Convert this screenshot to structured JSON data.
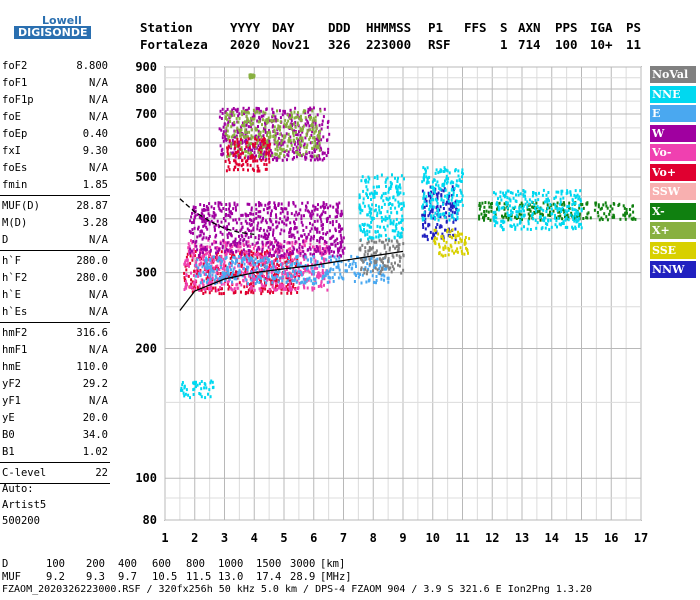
{
  "logo": {
    "line1": "Lowell",
    "line2": "DIGISONDE"
  },
  "header": {
    "row1": [
      "Station",
      "YYYY",
      "DAY",
      "DDD",
      "HHMMSS",
      "P1",
      "FFS",
      "S",
      "AXN",
      "PPS",
      "IGA",
      "PS"
    ],
    "row2": [
      "Fortaleza",
      "2020",
      "Nov21",
      "326",
      "223000",
      "RSF",
      "1",
      "714",
      "100",
      "10+",
      "11"
    ]
  },
  "params": {
    "group1": [
      {
        "k": "foF2",
        "v": "8.800"
      },
      {
        "k": "foF1",
        "v": "N/A"
      },
      {
        "k": "foF1p",
        "v": "N/A"
      },
      {
        "k": "foE",
        "v": "N/A"
      },
      {
        "k": "foEp",
        "v": "0.40"
      },
      {
        "k": "fxI",
        "v": "9.30"
      },
      {
        "k": "foEs",
        "v": "N/A"
      },
      {
        "k": "fmin",
        "v": "1.85"
      }
    ],
    "group2": [
      {
        "k": "MUF(D)",
        "v": "28.87"
      },
      {
        "k": "M(D)",
        "v": "3.28"
      },
      {
        "k": "D",
        "v": "N/A"
      }
    ],
    "group3": [
      {
        "k": "h`F",
        "v": "280.0"
      },
      {
        "k": "h`F2",
        "v": "280.0"
      },
      {
        "k": "h`E",
        "v": "N/A"
      },
      {
        "k": "h`Es",
        "v": "N/A"
      }
    ],
    "group4": [
      {
        "k": "hmF2",
        "v": "316.6"
      },
      {
        "k": "hmF1",
        "v": "N/A"
      },
      {
        "k": "hmE",
        "v": "110.0"
      },
      {
        "k": "yF2",
        "v": "29.2"
      },
      {
        "k": "yF1",
        "v": "N/A"
      },
      {
        "k": "yE",
        "v": "20.0"
      },
      {
        "k": "B0",
        "v": "34.0"
      },
      {
        "k": "B1",
        "v": "1.02"
      }
    ],
    "group5": [
      {
        "k": "C-level",
        "v": "22"
      }
    ]
  },
  "autoscale": {
    "line1": "Auto:",
    "line2": "Artist5",
    "line3": "500200"
  },
  "legend": [
    {
      "label": "NoVal",
      "color": "#808080"
    },
    {
      "label": "NNE",
      "color": "#00d8f0"
    },
    {
      "label": "E",
      "color": "#4aa8f0"
    },
    {
      "label": "W",
      "color": "#a000a0"
    },
    {
      "label": "Vo-",
      "color": "#f040b0"
    },
    {
      "label": "Vo+",
      "color": "#e00030"
    },
    {
      "label": "SSW",
      "color": "#f8b0b0"
    },
    {
      "label": "X-",
      "color": "#108010"
    },
    {
      "label": "X+",
      "color": "#88b040"
    },
    {
      "label": "SSE",
      "color": "#d8d000"
    },
    {
      "label": "NNW",
      "color": "#2020c0"
    }
  ],
  "bottom": {
    "d_label": "D",
    "d_values": [
      "100",
      "200",
      "400",
      "600",
      "800",
      "1000",
      "1500",
      "3000",
      "[km]"
    ],
    "muf_label": "MUF",
    "muf_values": [
      "9.2",
      "9.3",
      "9.7",
      "10.5",
      "11.5",
      "13.0",
      "17.4",
      "28.9",
      "[MHz]"
    ],
    "footer": "FZAOM_2020326223000.RSF / 320fx256h 50 kHz 5.0 km / DPS-4 FZAOM 904 / 3.9 S 321.6 E   Ion2Png 1.3.20"
  },
  "chart_data": {
    "type": "scatter",
    "title": "",
    "xlabel": "",
    "ylabel": "",
    "xlim": [
      1,
      17
    ],
    "ylim": [
      80,
      900
    ],
    "y_scale": "log",
    "xticks": [
      "1",
      "2",
      "3",
      "4",
      "5",
      "6",
      "7",
      "8",
      "9",
      "10",
      "11",
      "12",
      "13",
      "14",
      "15",
      "16",
      "17"
    ],
    "yticks": [
      "80",
      "100",
      "200",
      "300",
      "400",
      "500",
      "600",
      "700",
      "800",
      "900"
    ],
    "yvalues": [
      80,
      100,
      200,
      300,
      400,
      500,
      600,
      700,
      800,
      900
    ],
    "grid": true,
    "clusters": [
      {
        "color": "#e00030",
        "x": [
          1.6,
          5.5
        ],
        "y": [
          270,
          340
        ]
      },
      {
        "color": "#f040b0",
        "x": [
          1.6,
          6.5
        ],
        "y": [
          275,
          360
        ]
      },
      {
        "color": "#a000a0",
        "x": [
          1.8,
          7.0
        ],
        "y": [
          330,
          440
        ]
      },
      {
        "color": "#4aa8f0",
        "x": [
          2.0,
          8.5
        ],
        "y": [
          285,
          330
        ]
      },
      {
        "color": "#00d8f0",
        "x": [
          7.5,
          9.0
        ],
        "y": [
          360,
          510
        ]
      },
      {
        "color": "#2020c0",
        "x": [
          9.6,
          10.8
        ],
        "y": [
          360,
          480
        ]
      },
      {
        "color": "#00d8f0",
        "x": [
          9.6,
          11.0
        ],
        "y": [
          400,
          530
        ]
      },
      {
        "color": "#d8d000",
        "x": [
          10.0,
          11.2
        ],
        "y": [
          330,
          380
        ]
      },
      {
        "color": "#108010",
        "x": [
          11.5,
          16.8
        ],
        "y": [
          400,
          440
        ]
      },
      {
        "color": "#00d8f0",
        "x": [
          12.0,
          15.0
        ],
        "y": [
          380,
          470
        ]
      },
      {
        "color": "#a000a0",
        "x": [
          2.8,
          6.5
        ],
        "y": [
          550,
          730
        ]
      },
      {
        "color": "#88b040",
        "x": [
          3.0,
          6.2
        ],
        "y": [
          560,
          720
        ]
      },
      {
        "color": "#e00030",
        "x": [
          3.0,
          4.5
        ],
        "y": [
          520,
          620
        ]
      },
      {
        "color": "#00d8f0",
        "x": [
          1.5,
          2.6
        ],
        "y": [
          155,
          170
        ]
      },
      {
        "color": "#88b040",
        "x": [
          3.8,
          4.0
        ],
        "y": [
          855,
          870
        ]
      },
      {
        "color": "#808080",
        "x": [
          7.5,
          9.0
        ],
        "y": [
          300,
          360
        ]
      }
    ],
    "curves": [
      {
        "name": "",
        "color": "#000",
        "x": [
          1.5,
          2,
          3,
          4,
          5,
          6,
          7,
          8,
          9
        ],
        "y": [
          245,
          272,
          290,
          300,
          306,
          312,
          320,
          328,
          336
        ]
      },
      {
        "name": "",
        "color": "#000",
        "x": [
          1.5,
          2,
          2.5,
          3,
          3.5,
          4
        ],
        "y": [
          445,
          415,
          395,
          380,
          372,
          368
        ]
      }
    ]
  }
}
